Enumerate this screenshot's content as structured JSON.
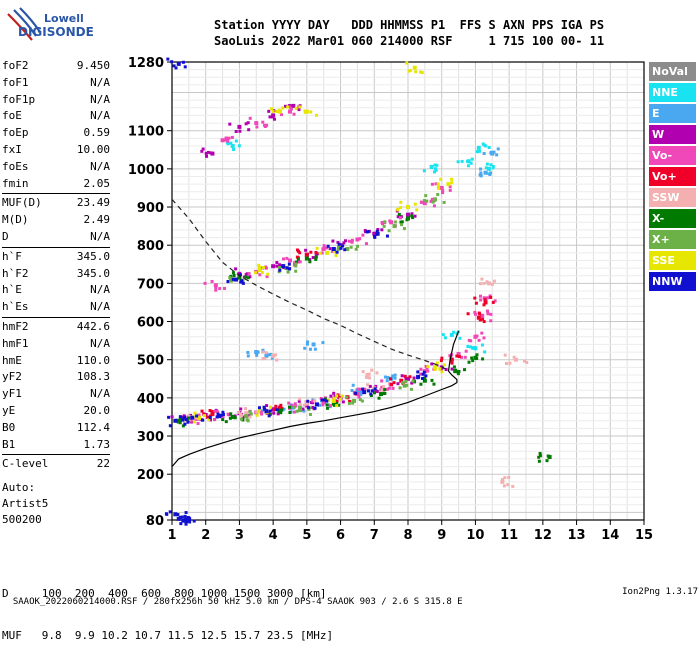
{
  "logo": {
    "line1": "Lowell",
    "line2": "DIGISONDE"
  },
  "header": {
    "line1": "Station YYYY DAY   DDD HHMMSS P1  FFS S AXN PPS IGA PS",
    "line2": "SaoLuis 2022 Mar01 060 214000 RSF     1 715 100 00- 11"
  },
  "params": [
    {
      "k": "foF2",
      "v": "9.450"
    },
    {
      "k": "foF1",
      "v": "N/A"
    },
    {
      "k": "foF1p",
      "v": "N/A"
    },
    {
      "k": "foE",
      "v": "N/A"
    },
    {
      "k": "foEp",
      "v": "0.59"
    },
    {
      "k": "fxI",
      "v": "10.00"
    },
    {
      "k": "foEs",
      "v": "N/A"
    },
    {
      "k": "fmin",
      "v": "2.05"
    },
    {
      "k": "MUF(D)",
      "v": "23.49",
      "sep": true
    },
    {
      "k": "M(D)",
      "v": "2.49"
    },
    {
      "k": "D",
      "v": "N/A"
    },
    {
      "k": "h`F",
      "v": "345.0",
      "sep": true
    },
    {
      "k": "h`F2",
      "v": "345.0"
    },
    {
      "k": "h`E",
      "v": "N/A"
    },
    {
      "k": "h`Es",
      "v": "N/A"
    },
    {
      "k": "hmF2",
      "v": "442.6",
      "sep": true
    },
    {
      "k": "hmF1",
      "v": "N/A"
    },
    {
      "k": "hmE",
      "v": "110.0"
    },
    {
      "k": "yF2",
      "v": "108.3"
    },
    {
      "k": "yF1",
      "v": "N/A"
    },
    {
      "k": "yE",
      "v": "20.0"
    },
    {
      "k": "B0",
      "v": "112.4"
    },
    {
      "k": "B1",
      "v": "1.73"
    },
    {
      "k": "C-level",
      "v": "22",
      "sep": true
    }
  ],
  "auto": {
    "l1": "Auto:",
    "l2": "Artist5",
    "l3": "500200"
  },
  "legend": [
    {
      "label": "NoVal",
      "color": "#8c8c8c"
    },
    {
      "label": "NNE",
      "color": "#19e3f0"
    },
    {
      "label": "E",
      "color": "#4aa8f0"
    },
    {
      "label": "W",
      "color": "#b000b0"
    },
    {
      "label": "Vo-",
      "color": "#f048b8"
    },
    {
      "label": "Vo+",
      "color": "#f00028"
    },
    {
      "label": "SSW",
      "color": "#f4b0b0"
    },
    {
      "label": "X-",
      "color": "#007a00"
    },
    {
      "label": "X+",
      "color": "#6cb048"
    },
    {
      "label": "SSE",
      "color": "#e6e600"
    },
    {
      "label": "NNW",
      "color": "#1010d0"
    }
  ],
  "bottom": {
    "line1": "D     100  200  400  600  800 1000 1500 3000 [km]",
    "line2": "MUF   9.8  9.9 10.2 10.7 11.5 12.5 15.7 23.5 [MHz]"
  },
  "footer": {
    "left": "SAAOK_2022060214000.RSF / 280fx256h 50 kHz 5.0 km / DPS-4 SAAOK 903 / 2.6 S 315.8 E",
    "right": "Ion2Png 1.3.17"
  },
  "chart_data": {
    "type": "scatter",
    "title": "",
    "xlabel": "",
    "ylabel": "",
    "xlim": [
      1,
      15
    ],
    "ylim": [
      80,
      1280
    ],
    "x_ticks": [
      1,
      2,
      3,
      4,
      5,
      6,
      7,
      8,
      9,
      10,
      11,
      12,
      13,
      14,
      15
    ],
    "y_ticks": [
      80,
      200,
      300,
      400,
      500,
      600,
      700,
      800,
      900,
      1000,
      1100,
      1280
    ],
    "grid": true,
    "series": [
      {
        "name": "NNE",
        "color": "#19e3f0",
        "points": [
          [
            8.7,
            1005
          ],
          [
            9.3,
            565
          ],
          [
            10.0,
            530
          ],
          [
            10.1,
            1055
          ],
          [
            10.4,
            1000
          ],
          [
            2.8,
            1060
          ],
          [
            9.8,
            1020
          ]
        ]
      },
      {
        "name": "E",
        "color": "#4aa8f0",
        "points": [
          [
            4.0,
            370
          ],
          [
            4.8,
            375
          ],
          [
            5.5,
            390
          ],
          [
            6.5,
            420
          ],
          [
            7.5,
            450
          ],
          [
            3.5,
            520
          ],
          [
            3.8,
            510
          ],
          [
            5.2,
            540
          ],
          [
            10.3,
            990
          ],
          [
            10.5,
            1040
          ]
        ]
      },
      {
        "name": "W",
        "color": "#b000b0",
        "points": [
          [
            1.3,
            348
          ],
          [
            2.0,
            355
          ],
          [
            3.0,
            360
          ],
          [
            4.0,
            370
          ],
          [
            5.0,
            380
          ],
          [
            6.0,
            400
          ],
          [
            7.0,
            420
          ],
          [
            8.0,
            450
          ],
          [
            9.0,
            480
          ],
          [
            3.0,
            725
          ],
          [
            4.0,
            745
          ],
          [
            5.0,
            775
          ],
          [
            6.0,
            800
          ],
          [
            7.0,
            830
          ],
          [
            8.0,
            880
          ],
          [
            2.2,
            1040
          ],
          [
            3.0,
            1110
          ],
          [
            4.0,
            1140
          ],
          [
            4.6,
            1165
          ]
        ]
      },
      {
        "name": "Vo-",
        "color": "#f048b8",
        "points": [
          [
            1.5,
            345
          ],
          [
            2.5,
            352
          ],
          [
            3.5,
            362
          ],
          [
            4.5,
            374
          ],
          [
            5.5,
            388
          ],
          [
            6.5,
            410
          ],
          [
            7.5,
            435
          ],
          [
            8.5,
            470
          ],
          [
            9.5,
            515
          ],
          [
            10.0,
            560
          ],
          [
            10.2,
            615
          ],
          [
            10.3,
            660
          ],
          [
            2.3,
            695
          ],
          [
            3.5,
            730
          ],
          [
            4.5,
            760
          ],
          [
            5.5,
            790
          ],
          [
            6.5,
            815
          ],
          [
            7.5,
            860
          ],
          [
            8.5,
            910
          ],
          [
            9.0,
            950
          ],
          [
            2.5,
            1075
          ],
          [
            3.5,
            1120
          ],
          [
            4.5,
            1150
          ]
        ]
      },
      {
        "name": "Vo+",
        "color": "#f00028",
        "points": [
          [
            2.2,
            358
          ],
          [
            4.2,
            372
          ],
          [
            6.2,
            402
          ],
          [
            7.8,
            445
          ],
          [
            9.3,
            500
          ],
          [
            10.1,
            610
          ],
          [
            10.3,
            650
          ],
          [
            5.0,
            775
          ]
        ]
      },
      {
        "name": "SSW",
        "color": "#f4b0b0",
        "points": [
          [
            1.5,
            345
          ],
          [
            3.2,
            360
          ],
          [
            5.0,
            385
          ],
          [
            7.0,
            425
          ],
          [
            6.8,
            460
          ],
          [
            4.0,
            510
          ],
          [
            10.4,
            700
          ],
          [
            11.2,
            500
          ],
          [
            10.8,
            180
          ]
        ]
      },
      {
        "name": "X-",
        "color": "#007a00",
        "points": [
          [
            1.2,
            338
          ],
          [
            2.8,
            350
          ],
          [
            4.2,
            365
          ],
          [
            5.8,
            385
          ],
          [
            7.2,
            410
          ],
          [
            8.5,
            445
          ],
          [
            9.4,
            470
          ],
          [
            10.0,
            505
          ],
          [
            3.0,
            715
          ],
          [
            5.0,
            765
          ],
          [
            8.0,
            870
          ],
          [
            12.2,
            245
          ]
        ]
      },
      {
        "name": "X+",
        "color": "#6cb048",
        "points": [
          [
            3.2,
            352
          ],
          [
            4.8,
            368
          ],
          [
            6.4,
            392
          ],
          [
            7.9,
            432
          ],
          [
            2.8,
            710
          ],
          [
            4.4,
            740
          ],
          [
            6.2,
            790
          ],
          [
            7.6,
            850
          ],
          [
            8.8,
            920
          ]
        ]
      },
      {
        "name": "SSE",
        "color": "#e6e600",
        "points": [
          [
            1.8,
            348
          ],
          [
            3.8,
            365
          ],
          [
            5.8,
            392
          ],
          [
            8.8,
            480
          ],
          [
            3.6,
            735
          ],
          [
            5.6,
            780
          ],
          [
            8.0,
            900
          ],
          [
            9.2,
            960
          ],
          [
            5.0,
            1150
          ],
          [
            4.2,
            1150
          ],
          [
            8.2,
            1265
          ]
        ]
      },
      {
        "name": "NNW",
        "color": "#1010d0",
        "points": [
          [
            1.1,
            340
          ],
          [
            1.6,
            348
          ],
          [
            2.4,
            352
          ],
          [
            3.8,
            365
          ],
          [
            5.3,
            383
          ],
          [
            6.7,
            415
          ],
          [
            8.3,
            455
          ],
          [
            2.9,
            710
          ],
          [
            4.3,
            745
          ],
          [
            5.8,
            790
          ],
          [
            7.1,
            830
          ],
          [
            1.1,
            95
          ],
          [
            1.2,
            83
          ],
          [
            1.4,
            80
          ],
          [
            1.2,
            1275
          ],
          [
            1.5,
            80
          ]
        ]
      }
    ],
    "profile_solid": [
      [
        1.0,
        220
      ],
      [
        1.2,
        240
      ],
      [
        1.5,
        252
      ],
      [
        2.0,
        268
      ],
      [
        2.5,
        282
      ],
      [
        3.0,
        295
      ],
      [
        3.5,
        305
      ],
      [
        4.0,
        315
      ],
      [
        4.5,
        325
      ],
      [
        5.0,
        333
      ],
      [
        5.5,
        340
      ],
      [
        6.0,
        348
      ],
      [
        6.5,
        356
      ],
      [
        7.0,
        364
      ],
      [
        7.5,
        375
      ],
      [
        8.0,
        388
      ],
      [
        8.5,
        405
      ],
      [
        9.0,
        422
      ],
      [
        9.3,
        432
      ],
      [
        9.45,
        440
      ],
      [
        9.45,
        448
      ],
      [
        9.3,
        460
      ],
      [
        9.2,
        470
      ],
      [
        9.25,
        500
      ],
      [
        9.35,
        540
      ],
      [
        9.5,
        575
      ]
    ],
    "profile_dashed": [
      [
        1.0,
        920
      ],
      [
        1.5,
        870
      ],
      [
        2.0,
        810
      ],
      [
        2.5,
        755
      ],
      [
        3.0,
        720
      ],
      [
        3.5,
        695
      ],
      [
        4.0,
        672
      ],
      [
        4.5,
        650
      ],
      [
        5.0,
        630
      ],
      [
        5.5,
        608
      ],
      [
        6.0,
        590
      ],
      [
        6.5,
        568
      ],
      [
        7.0,
        548
      ],
      [
        7.5,
        528
      ],
      [
        8.0,
        512
      ],
      [
        8.5,
        498
      ],
      [
        9.0,
        482
      ],
      [
        9.2,
        470
      ]
    ]
  }
}
